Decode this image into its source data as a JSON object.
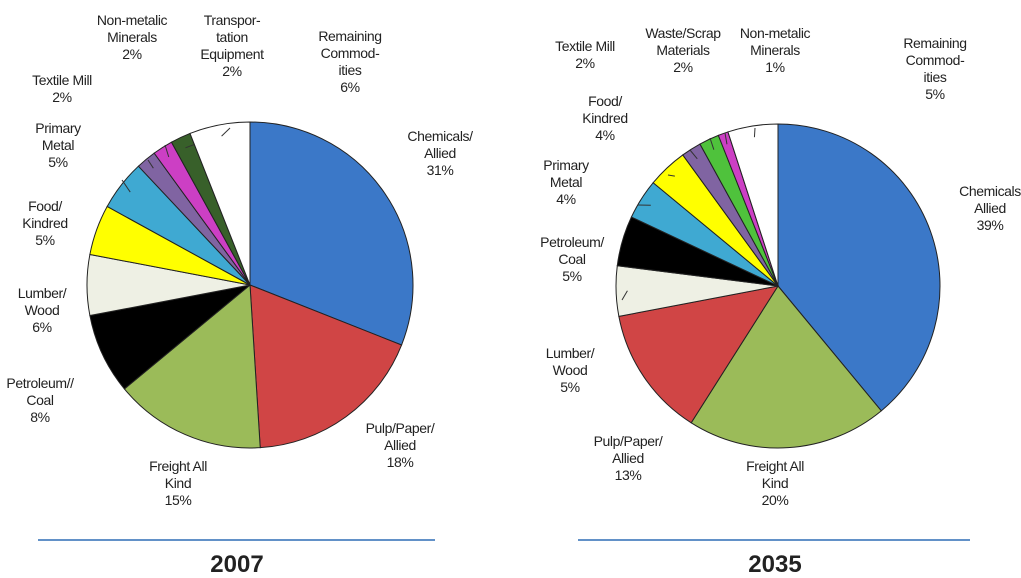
{
  "chart_data": [
    {
      "type": "pie",
      "title": "2007",
      "categories": [
        "Chemicals/\nAllied",
        "Pulp/Paper/\nAllied",
        "Freight All\nKind",
        "Petroleum//\nCoal",
        "Lumber/\nWood",
        "Food/\nKindred",
        "Primary\nMetal",
        "Textile Mill",
        "Non-metalic\nMinerals",
        "Transpor-\ntation\nEquipment",
        "Remaining\nCommod-\nities"
      ],
      "values": [
        31,
        18,
        15,
        8,
        6,
        5,
        5,
        2,
        2,
        2,
        6
      ],
      "value_labels": [
        "31%",
        "18%",
        "15%",
        "8%",
        "6%",
        "5%",
        "5%",
        "2%",
        "2%",
        "2%",
        "6%"
      ],
      "colors": [
        "#3b78c8",
        "#d04545",
        "#9bbb59",
        "#000000",
        "#eef0e4",
        "#ffff00",
        "#3fa9d2",
        "#8064a2",
        "#cc3fc4",
        "#38602a",
        "#ffffff"
      ]
    },
    {
      "type": "pie",
      "title": "2035",
      "categories": [
        "Chemicals\nAllied",
        "Freight All\nKind",
        "Pulp/Paper/\nAllied",
        "Lumber/\nWood",
        "Petroleum/\nCoal",
        "Primary\nMetal",
        "Food/\nKindred",
        "Textile Mill",
        "Waste/Scrap\nMaterials",
        "Non-metalic\nMinerals",
        "Remaining\nCommod-\nities"
      ],
      "values": [
        39,
        20,
        13,
        5,
        5,
        4,
        4,
        2,
        2,
        1,
        5
      ],
      "value_labels": [
        "39%",
        "20%",
        "13%",
        "5%",
        "5%",
        "4%",
        "4%",
        "2%",
        "2%",
        "1%",
        "5%"
      ],
      "colors": [
        "#3b78c8",
        "#9bbb59",
        "#d04545",
        "#eef0e4",
        "#000000",
        "#3fa9d2",
        "#ffff00",
        "#8064a2",
        "#4fc23c",
        "#cc3fc4",
        "#ffffff"
      ]
    }
  ]
}
